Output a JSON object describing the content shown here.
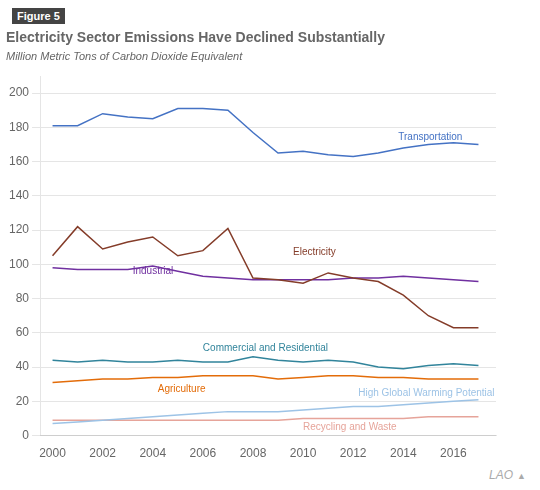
{
  "chart_data": {
    "type": "line",
    "title": "Electricity Sector Emissions Have Declined Substantially",
    "subtitle": "Million Metric Tons of Carbon Dioxide Equivalent",
    "figure_label": "Figure 5",
    "watermark": [
      "LAO",
      "▲"
    ],
    "x": [
      2000,
      2001,
      2002,
      2003,
      2004,
      2005,
      2006,
      2007,
      2008,
      2009,
      2010,
      2011,
      2012,
      2013,
      2014,
      2015,
      2016,
      2017
    ],
    "series": [
      {
        "name": "Transportation",
        "color": "#4472C4",
        "values": [
          181,
          181,
          188,
          186,
          185,
          191,
          191,
          190,
          177,
          165,
          166,
          164,
          163,
          165,
          168,
          170,
          171,
          170
        ]
      },
      {
        "name": "Electricity",
        "color": "#843C29",
        "values": [
          105,
          122,
          109,
          113,
          116,
          105,
          108,
          121,
          92,
          91,
          89,
          95,
          92,
          90,
          82,
          70,
          63,
          63
        ]
      },
      {
        "name": "Industrial",
        "color": "#7030A0",
        "values": [
          98,
          97,
          97,
          97,
          99,
          96,
          93,
          92,
          91,
          91,
          91,
          91,
          92,
          92,
          93,
          92,
          91,
          90
        ]
      },
      {
        "name": "Commercial and Residential",
        "color": "#31849B",
        "values": [
          44,
          43,
          44,
          43,
          43,
          44,
          43,
          43,
          46,
          44,
          43,
          44,
          43,
          40,
          39,
          41,
          42,
          41
        ]
      },
      {
        "name": "Agriculture",
        "color": "#E36C09",
        "values": [
          31,
          32,
          33,
          33,
          34,
          34,
          35,
          35,
          35,
          33,
          34,
          35,
          35,
          34,
          34,
          33,
          33,
          33
        ]
      },
      {
        "name": "High Global Warming Potential",
        "color": "#9DC3E6",
        "values": [
          7,
          8,
          9,
          10,
          11,
          12,
          13,
          14,
          14,
          14,
          15,
          16,
          17,
          17,
          18,
          19,
          20,
          21
        ]
      },
      {
        "name": "Recycling and Waste",
        "color": "#E6A49A",
        "values": [
          9,
          9,
          9,
          9,
          9,
          9,
          9,
          9,
          9,
          9,
          10,
          10,
          10,
          10,
          10,
          11,
          11,
          11
        ]
      }
    ],
    "annotations": [
      {
        "text": "Transportation",
        "x": 2013.8,
        "y": 174,
        "color": "#4472C4"
      },
      {
        "text": "Electricity",
        "x": 2009.6,
        "y": 107,
        "color": "#843C29"
      },
      {
        "text": "Industrial",
        "x": 2003.2,
        "y": 96,
        "color": "#7030A0"
      },
      {
        "text": "Commercial and Residential",
        "x": 2006.0,
        "y": 51,
        "color": "#31849B"
      },
      {
        "text": "Agriculture",
        "x": 2004.2,
        "y": 27,
        "color": "#E36C09"
      },
      {
        "text": "High Global Warming Potential",
        "x": 2012.2,
        "y": 25,
        "color": "#9DC3E6"
      },
      {
        "text": "Recycling and Waste",
        "x": 2010.0,
        "y": 5,
        "color": "#E6A49A"
      }
    ],
    "xlim": [
      1999.5,
      2017.7
    ],
    "xticks": [
      2000,
      2002,
      2004,
      2006,
      2008,
      2010,
      2012,
      2014,
      2016
    ],
    "ylim": [
      0,
      210
    ],
    "yticks": [
      0,
      20,
      40,
      60,
      80,
      100,
      120,
      140,
      160,
      180,
      200
    ],
    "grid": "y"
  }
}
